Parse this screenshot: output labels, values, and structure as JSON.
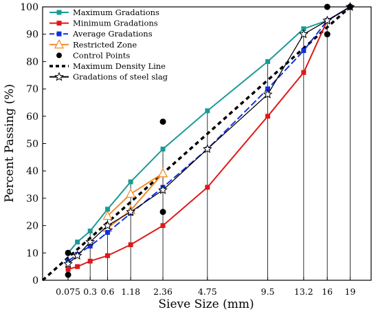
{
  "chart_data": {
    "type": "line",
    "title": "",
    "xlabel": "Sieve Size (mm)",
    "ylabel": "Percent Passing (%)",
    "x_scale": "power-0.45",
    "xlim": [
      0,
      22
    ],
    "ylim": [
      0,
      100
    ],
    "yticks": [
      0,
      10,
      20,
      30,
      40,
      50,
      60,
      70,
      80,
      90,
      100
    ],
    "x_tick_labels": [
      "0.075",
      "0.3",
      "0.6",
      "1.18",
      "2.36",
      "4.75",
      "9.5",
      "13.2",
      "16",
      "19"
    ],
    "x_tick_values": [
      0.075,
      0.3,
      0.6,
      1.18,
      2.36,
      4.75,
      9.5,
      13.2,
      16,
      19
    ],
    "legend_position": "top-left",
    "series": [
      {
        "name": "Maximum Gradations",
        "color": "#1a9a96",
        "dash": "solid",
        "marker": "square",
        "x": [
          0.075,
          0.15,
          0.3,
          0.6,
          1.18,
          2.36,
          4.75,
          9.5,
          13.2,
          16,
          19
        ],
        "y": [
          10,
          14,
          18,
          26,
          36,
          48,
          62,
          80,
          92,
          95,
          100
        ]
      },
      {
        "name": "Minimum Gradations",
        "color": "#e01818",
        "dash": "solid",
        "marker": "square",
        "x": [
          0.075,
          0.15,
          0.3,
          0.6,
          1.18,
          2.36,
          4.75,
          9.5,
          13.2,
          16,
          19
        ],
        "y": [
          4,
          5,
          7,
          9,
          13,
          20,
          34,
          60,
          76,
          95,
          100
        ]
      },
      {
        "name": "Average Gradations",
        "color": "#1030e0",
        "dash": "dashed",
        "marker": "square",
        "x": [
          0.075,
          0.15,
          0.3,
          0.6,
          1.18,
          2.36,
          4.75,
          9.5,
          13.2,
          16,
          19
        ],
        "y": [
          7,
          9.5,
          12.5,
          17.5,
          24.5,
          34,
          48,
          70,
          84,
          95,
          100
        ]
      },
      {
        "name": "Restricted Zone",
        "color": "#f08a24",
        "dash": "solid",
        "marker": "triangle-open",
        "x": [
          0.6,
          1.18,
          2.36,
          2.36,
          1.18,
          0.6
        ],
        "y": [
          23.5,
          31.6,
          39.1,
          39.1,
          25.6,
          19.1
        ]
      },
      {
        "name": "Control Points",
        "color": "#000000",
        "dash": "none",
        "marker": "circle",
        "x": [
          0.075,
          0.075,
          2.36,
          2.36,
          16,
          16,
          19
        ],
        "y": [
          2,
          10,
          25,
          58,
          90,
          100,
          100
        ]
      },
      {
        "name": "Maximum Density Line",
        "color": "#000000",
        "dash": "dotted-thick",
        "marker": "none",
        "x": [
          0,
          19
        ],
        "y": [
          0,
          100
        ]
      },
      {
        "name": "Gradations of steel slag",
        "color": "#000000",
        "dash": "solid",
        "marker": "star-open",
        "x": [
          0.075,
          0.15,
          0.3,
          0.6,
          1.18,
          2.36,
          4.75,
          9.5,
          13.2,
          16,
          19
        ],
        "y": [
          6,
          9,
          14,
          20,
          25,
          33,
          48,
          68,
          90,
          95,
          100
        ]
      }
    ]
  }
}
